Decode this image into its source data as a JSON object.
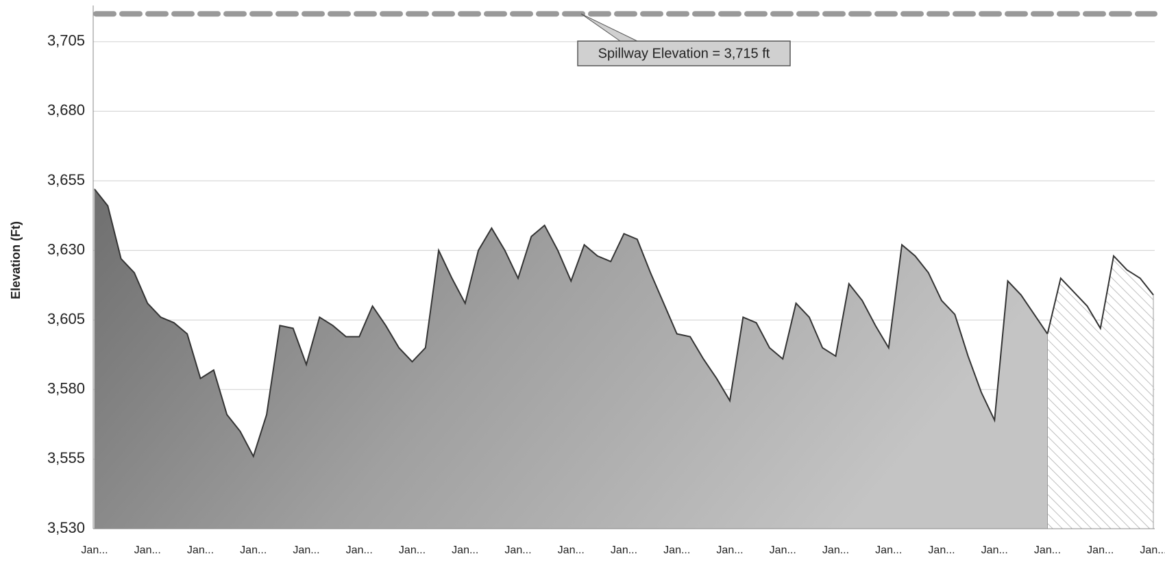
{
  "chart_data": {
    "type": "area",
    "y_label": "Elevation (Ft)",
    "categories": [
      "Jan...",
      null,
      null,
      null,
      "Jan...",
      null,
      null,
      null,
      "Jan...",
      null,
      null,
      null,
      "Jan...",
      null,
      null,
      null,
      "Jan...",
      null,
      null,
      null,
      "Jan...",
      null,
      null,
      null,
      "Jan...",
      null,
      null,
      null,
      "Jan...",
      null,
      null,
      null,
      "Jan...",
      null,
      null,
      null,
      "Jan...",
      null,
      null,
      null,
      "Jan...",
      null,
      null,
      null,
      "Jan...",
      null,
      null,
      null,
      "Jan...",
      null,
      null,
      null,
      "Jan...",
      null,
      null,
      null,
      "Jan...",
      null,
      null,
      null,
      "Jan...",
      null,
      null,
      null,
      "Jan...",
      null,
      null,
      null,
      "Jan...",
      null,
      null,
      null,
      "Jan...",
      null,
      null,
      null,
      "Jan...",
      null,
      null,
      null,
      "Jan..."
    ],
    "series": [
      {
        "color": "#8a8a8a",
        "fill": "gradient",
        "values": [
          3652,
          3646,
          3627,
          3622,
          3611,
          3606,
          3604,
          3600,
          3584,
          3587,
          3571,
          3565,
          3556,
          3571,
          3603,
          3602,
          3589,
          3606,
          3603,
          3599,
          3599,
          3610,
          3603,
          3595,
          3590,
          3595,
          3630,
          3620,
          3611,
          3630,
          3638,
          3630,
          3620,
          3635,
          3639,
          3630,
          3619,
          3632,
          3628,
          3626,
          3636,
          3634,
          3622,
          3611,
          3600,
          3599,
          3591,
          3584,
          3576,
          3606,
          3604,
          3595,
          3591,
          3611,
          3606,
          3595,
          3592,
          3618,
          3612,
          3603,
          3595,
          3632,
          3628,
          3622,
          3612,
          3607,
          3592,
          3579,
          3569,
          3619,
          3614,
          3607,
          3600,
          null,
          null,
          null,
          null,
          null,
          null,
          null,
          null
        ]
      },
      {
        "color": "#9a9a9a",
        "fill": "hatch",
        "values": [
          null,
          null,
          null,
          null,
          null,
          null,
          null,
          null,
          null,
          null,
          null,
          null,
          null,
          null,
          null,
          null,
          null,
          null,
          null,
          null,
          null,
          null,
          null,
          null,
          null,
          null,
          null,
          null,
          null,
          null,
          null,
          null,
          null,
          null,
          null,
          null,
          null,
          null,
          null,
          null,
          null,
          null,
          null,
          null,
          null,
          null,
          null,
          null,
          null,
          null,
          null,
          null,
          null,
          null,
          null,
          null,
          null,
          null,
          null,
          null,
          null,
          null,
          null,
          null,
          null,
          null,
          null,
          null,
          null,
          null,
          null,
          null,
          3600,
          3620,
          3615,
          3610,
          3602,
          3628,
          3623,
          3620,
          3614
        ]
      }
    ],
    "reference_lines": [
      {
        "value": 3715,
        "label": "Spillway Elevation = 3,715 ft",
        "color": "#999999",
        "style": "dashed"
      }
    ],
    "ylim": [
      3530,
      3718
    ],
    "yticks": [
      {
        "value": 3530,
        "label": "3,530"
      },
      {
        "value": 3555,
        "label": "3,555"
      },
      {
        "value": 3580,
        "label": "3,580"
      },
      {
        "value": 3605,
        "label": "3,605"
      },
      {
        "value": 3630,
        "label": "3,630"
      },
      {
        "value": 3655,
        "label": "3,655"
      },
      {
        "value": 3680,
        "label": "3,680"
      },
      {
        "value": 3705,
        "label": "3,705"
      }
    ],
    "grid": true
  }
}
